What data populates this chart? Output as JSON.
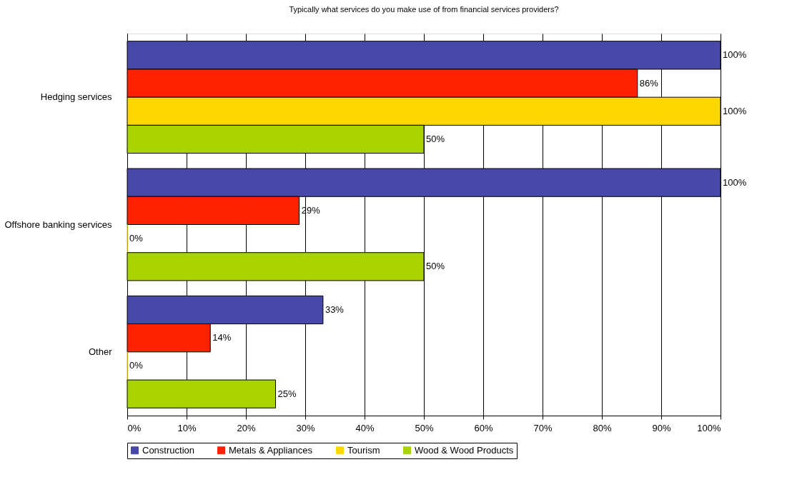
{
  "chart_data": {
    "type": "bar",
    "orientation": "horizontal",
    "title": "Typically what services do you make use of from financial services providers?",
    "categories": [
      "Hedging services",
      "Offshore banking services",
      "Other"
    ],
    "series": [
      {
        "name": "Construction",
        "color": "#4848a8",
        "values": [
          100,
          100,
          33
        ],
        "value_labels": [
          "100%",
          "100%",
          "33%"
        ]
      },
      {
        "name": "Metals & Appliances",
        "color": "#ff2200",
        "values": [
          86,
          29,
          14
        ],
        "value_labels": [
          "86%",
          "29%",
          "14%"
        ]
      },
      {
        "name": "Tourism",
        "color": "#ffd700",
        "values": [
          100,
          0,
          0
        ],
        "value_labels": [
          "100%",
          "0%",
          "0%"
        ]
      },
      {
        "name": "Wood & Wood Products",
        "color": "#aad400",
        "values": [
          50,
          50,
          25
        ],
        "value_labels": [
          "50%",
          "50%",
          "25%"
        ]
      }
    ],
    "xlim": [
      0,
      100
    ],
    "xticks": [
      {
        "value": 0,
        "label": "0%"
      },
      {
        "value": 10,
        "label": "10%"
      },
      {
        "value": 20,
        "label": "20%"
      },
      {
        "value": 30,
        "label": "30%"
      },
      {
        "value": 40,
        "label": "40%"
      },
      {
        "value": 50,
        "label": "50%"
      },
      {
        "value": 60,
        "label": "60%"
      },
      {
        "value": 70,
        "label": "70%"
      },
      {
        "value": 80,
        "label": "80%"
      },
      {
        "value": 90,
        "label": "90%"
      },
      {
        "value": 100,
        "label": "100%"
      }
    ],
    "grid": "x",
    "legend": "bottom"
  }
}
